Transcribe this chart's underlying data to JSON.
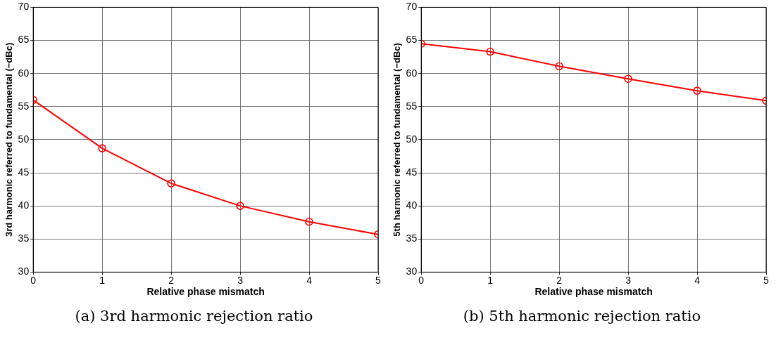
{
  "chart_data": [
    {
      "type": "line",
      "xlabel": "Relative phase mismatch",
      "ylabel": "3rd harmonic referred to fundamental (−dBc)",
      "x": [
        0,
        1,
        2,
        3,
        4,
        5
      ],
      "series": [
        {
          "color": "#ff0000",
          "values": [
            56,
            48.7,
            43.4,
            40,
            37.6,
            35.7
          ]
        }
      ],
      "xlim": [
        0,
        5
      ],
      "xticks": [
        0,
        1,
        2,
        3,
        4,
        5
      ],
      "ylim": [
        30,
        70
      ],
      "yticks": [
        30,
        35,
        40,
        45,
        50,
        55,
        60,
        65,
        70
      ],
      "grid": true,
      "marker": "circle",
      "line_style": "solid",
      "legend": false,
      "annotations": [
        "(a) 3rd harmonic rejection ratio"
      ]
    },
    {
      "type": "line",
      "xlabel": "Relative phase mismatch",
      "ylabel": "5th harmonic referred to fundamental (−dBc)",
      "x": [
        0,
        1,
        2,
        3,
        4,
        5
      ],
      "series": [
        {
          "color": "#ff0000",
          "values": [
            64.5,
            63.3,
            61.1,
            59.2,
            57.4,
            55.9
          ]
        }
      ],
      "xlim": [
        0,
        5
      ],
      "xticks": [
        0,
        1,
        2,
        3,
        4,
        5
      ],
      "ylim": [
        30,
        70
      ],
      "yticks": [
        30,
        35,
        40,
        45,
        50,
        55,
        60,
        65,
        70
      ],
      "grid": true,
      "marker": "circle",
      "line_style": "solid",
      "legend": false,
      "annotations": [
        "(b) 5th harmonic rejection ratio"
      ]
    }
  ]
}
